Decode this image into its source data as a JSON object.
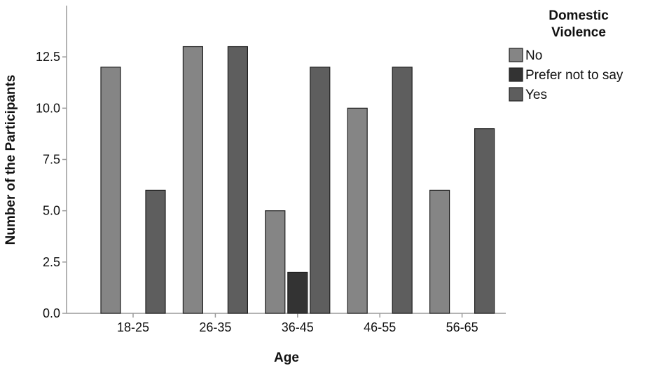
{
  "chart_data": {
    "type": "bar",
    "categories": [
      "18-25",
      "26-35",
      "36-45",
      "46-55",
      "56-65"
    ],
    "series": [
      {
        "name": "No",
        "values": [
          12,
          13,
          5,
          10,
          6
        ],
        "color": "#858585"
      },
      {
        "name": "Prefer not to say",
        "values": [
          0,
          0,
          2,
          0,
          0
        ],
        "color": "#333333"
      },
      {
        "name": "Yes",
        "values": [
          6,
          13,
          12,
          12,
          9
        ],
        "color": "#5e5e5e"
      }
    ],
    "title": "",
    "xlabel": "Age",
    "ylabel": "Number of the Participants",
    "ylim": [
      0,
      15
    ],
    "yticks": [
      "0.0",
      "2.5",
      "5.0",
      "7.5",
      "10.0",
      "12.5"
    ],
    "grid": false,
    "legend": {
      "title_lines": [
        "Domestic",
        "Violence"
      ],
      "position": "top-right"
    }
  }
}
